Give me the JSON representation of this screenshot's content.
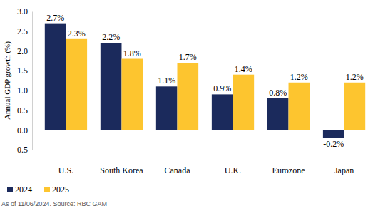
{
  "chart_data": {
    "type": "bar",
    "y_label": "Annual GDP growth (%)",
    "annotations": [
      "As of 11/06/2024. Source: RBC GAM"
    ],
    "categories": [
      "U.S.",
      "South Korea",
      "Canada",
      "U.K.",
      "Eurozone",
      "Japan"
    ],
    "series": [
      {
        "name": "2024",
        "color": "#1b2a5c",
        "values": [
          2.7,
          2.2,
          1.1,
          0.9,
          0.8,
          -0.2
        ],
        "value_labels": [
          "2.7%",
          "2.2%",
          "1.1%",
          "0.9%",
          "0.8%",
          "-0.2%"
        ]
      },
      {
        "name": "2025",
        "color": "#fdc52f",
        "values": [
          2.3,
          1.8,
          1.7,
          1.4,
          1.2,
          1.2
        ],
        "value_labels": [
          "2.3%",
          "1.8%",
          "1.7%",
          "1.4%",
          "1.2%",
          "1.2%"
        ]
      }
    ],
    "ylim": [
      -0.5,
      3.0
    ],
    "yticks": [
      -0.5,
      {
        "value": 0,
        "label": "0.0"
      },
      0.5,
      {
        "value": 1,
        "label": "1.0"
      },
      1.5,
      {
        "value": 2,
        "label": "2.0"
      },
      2.5,
      {
        "value": 3,
        "label": "3.0"
      }
    ],
    "grid": false,
    "data_labels": true,
    "legend": "bottom-left"
  }
}
